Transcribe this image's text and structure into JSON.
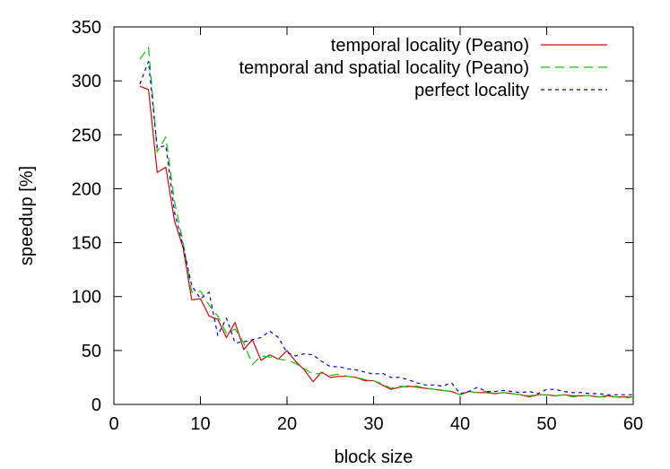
{
  "chart_data": {
    "type": "line",
    "xlabel": "block size",
    "ylabel": "speedup [%]",
    "xlim": [
      0,
      60
    ],
    "ylim": [
      0,
      350
    ],
    "xticks": [
      0,
      10,
      20,
      30,
      40,
      50,
      60
    ],
    "yticks": [
      0,
      50,
      100,
      150,
      200,
      250,
      300,
      350
    ],
    "grid": false,
    "legend_position": "top-right",
    "series": [
      {
        "name": "temporal locality (Peano)",
        "color": "#e00000",
        "dash": "solid",
        "x": [
          3,
          4,
          5,
          6,
          7,
          8,
          9,
          10,
          11,
          12,
          13,
          14,
          15,
          16,
          17,
          18,
          19,
          20,
          21,
          22,
          23,
          24,
          25,
          26,
          27,
          28,
          29,
          30,
          31,
          32,
          33,
          34,
          35,
          36,
          37,
          38,
          39,
          40,
          41,
          42,
          43,
          44,
          45,
          46,
          47,
          48,
          49,
          50,
          51,
          52,
          53,
          54,
          55,
          56,
          57,
          58,
          59,
          60
        ],
        "values": [
          295,
          292,
          215,
          220,
          170,
          145,
          97,
          98,
          82,
          79,
          62,
          76,
          51,
          60,
          41,
          46,
          42,
          50,
          40,
          32,
          21,
          30,
          25,
          26,
          26,
          25,
          22,
          22,
          18,
          14,
          16,
          17,
          16,
          15,
          14,
          13,
          12,
          9,
          12,
          11,
          11,
          10,
          11,
          10,
          9,
          7,
          9,
          9,
          8,
          9,
          8,
          8,
          8,
          7,
          8,
          7,
          7,
          7
        ]
      },
      {
        "name": "temporal and spatial locality (Peano)",
        "color": "#00cc00",
        "dash": "10,6",
        "x": [
          3,
          4,
          5,
          6,
          7,
          8,
          9,
          10,
          11,
          12,
          13,
          14,
          15,
          16,
          17,
          18,
          19,
          20,
          21,
          22,
          23,
          24,
          25,
          26,
          27,
          28,
          29,
          30,
          31,
          32,
          33,
          34,
          35,
          36,
          37,
          38,
          39,
          40,
          41,
          42,
          43,
          44,
          45,
          46,
          47,
          48,
          49,
          50,
          51,
          52,
          53,
          54,
          55,
          56,
          57,
          58,
          59,
          60
        ],
        "values": [
          320,
          331,
          234,
          248,
          188,
          150,
          104,
          105,
          92,
          82,
          66,
          70,
          57,
          37,
          45,
          44,
          42,
          41,
          38,
          33,
          28,
          29,
          27,
          28,
          26,
          25,
          23,
          22,
          19,
          15,
          17,
          16,
          17,
          15,
          14,
          13,
          12,
          9,
          12,
          11,
          12,
          10,
          11,
          10,
          9,
          8,
          9,
          9,
          8,
          9,
          7,
          8,
          8,
          7,
          7,
          7,
          6,
          7
        ]
      },
      {
        "name": "perfect locality",
        "color": "#0000dd",
        "dash": "4,4",
        "x": [
          3,
          4,
          5,
          6,
          7,
          8,
          9,
          10,
          11,
          12,
          13,
          14,
          15,
          16,
          17,
          18,
          19,
          20,
          21,
          22,
          23,
          24,
          25,
          26,
          27,
          28,
          29,
          30,
          31,
          32,
          33,
          34,
          35,
          36,
          37,
          38,
          39,
          40,
          41,
          42,
          43,
          44,
          45,
          46,
          47,
          48,
          49,
          50,
          51,
          52,
          53,
          54,
          55,
          56,
          57,
          58,
          59,
          60
        ],
        "values": [
          297,
          318,
          238,
          240,
          178,
          147,
          110,
          98,
          104,
          64,
          80,
          57,
          58,
          60,
          62,
          68,
          62,
          48,
          45,
          47,
          46,
          40,
          35,
          35,
          33,
          32,
          30,
          28,
          29,
          25,
          25,
          23,
          20,
          18,
          18,
          17,
          20,
          10,
          12,
          16,
          12,
          12,
          13,
          12,
          11,
          12,
          10,
          14,
          14,
          12,
          11,
          11,
          10,
          10,
          9,
          9,
          9,
          9
        ]
      }
    ]
  }
}
